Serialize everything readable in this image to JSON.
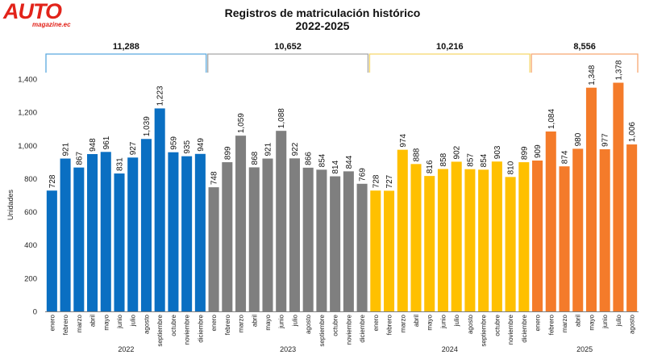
{
  "logo": {
    "text": "AUTO",
    "sub": "magazine.ec"
  },
  "chart_data": {
    "type": "bar",
    "title": "Registros de matriculación histórico",
    "subtitle": "2022-2025",
    "ylabel": "Unidades",
    "ylim": [
      0,
      1400
    ],
    "yticks": [
      "0",
      "200",
      "400",
      "600",
      "800",
      "1,000",
      "1,200",
      "1,400"
    ],
    "groups": [
      {
        "year": "2022",
        "total": "11,288",
        "color": "#0a6fc2",
        "bracket_color": "#5aa9df",
        "categories": [
          "enero",
          "febrero",
          "marzo",
          "abril",
          "mayo",
          "junio",
          "julio",
          "agosto",
          "septiembre",
          "octubre",
          "noviembre",
          "diciembre"
        ],
        "values": [
          728,
          921,
          867,
          948,
          961,
          831,
          927,
          1039,
          1223,
          959,
          935,
          949
        ]
      },
      {
        "year": "2023",
        "total": "10,652",
        "color": "#7f7f7f",
        "bracket_color": "#a6a6a6",
        "categories": [
          "enero",
          "febrero",
          "marzo",
          "abril",
          "mayo",
          "junio",
          "julio",
          "agosto",
          "septiembre",
          "octubre",
          "noviembre",
          "diciembre"
        ],
        "values": [
          748,
          899,
          1059,
          868,
          921,
          1088,
          922,
          866,
          854,
          814,
          844,
          769
        ]
      },
      {
        "year": "2024",
        "total": "10,216",
        "color": "#ffc000",
        "bracket_color": "#f5d76b",
        "categories": [
          "enero",
          "febrero",
          "marzo",
          "abril",
          "mayo",
          "junio",
          "julio",
          "agosto",
          "septiembre",
          "octubre",
          "noviembre",
          "diciembre"
        ],
        "values": [
          728,
          727,
          974,
          888,
          816,
          858,
          902,
          857,
          854,
          903,
          810,
          899
        ]
      },
      {
        "year": "2025",
        "total": "8,556",
        "color": "#f47b2a",
        "bracket_color": "#f7a872",
        "categories": [
          "enero",
          "febrero",
          "marzo",
          "abril",
          "mayo",
          "junio",
          "julio",
          "agosto"
        ],
        "values": [
          909,
          1084,
          874,
          980,
          1348,
          977,
          1378,
          1006
        ]
      }
    ]
  }
}
